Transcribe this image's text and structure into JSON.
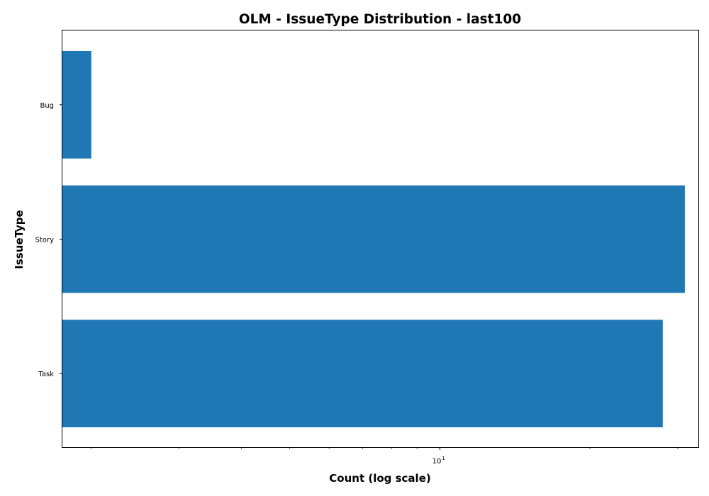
{
  "chart_data": {
    "type": "bar",
    "orientation": "horizontal",
    "title": "OLM - IssueType Distribution - last100",
    "xlabel": "Count (log scale)",
    "ylabel": "IssueType",
    "x_scale": "log",
    "xlim": [
      1.75,
      33
    ],
    "x_major_tick_labels": [
      {
        "base": "10",
        "exponent": "1",
        "value": 10
      }
    ],
    "categories": [
      "Bug",
      "Story",
      "Task"
    ],
    "values": [
      2,
      31,
      28
    ],
    "bar_color": "#1f77b4",
    "grid": false
  }
}
